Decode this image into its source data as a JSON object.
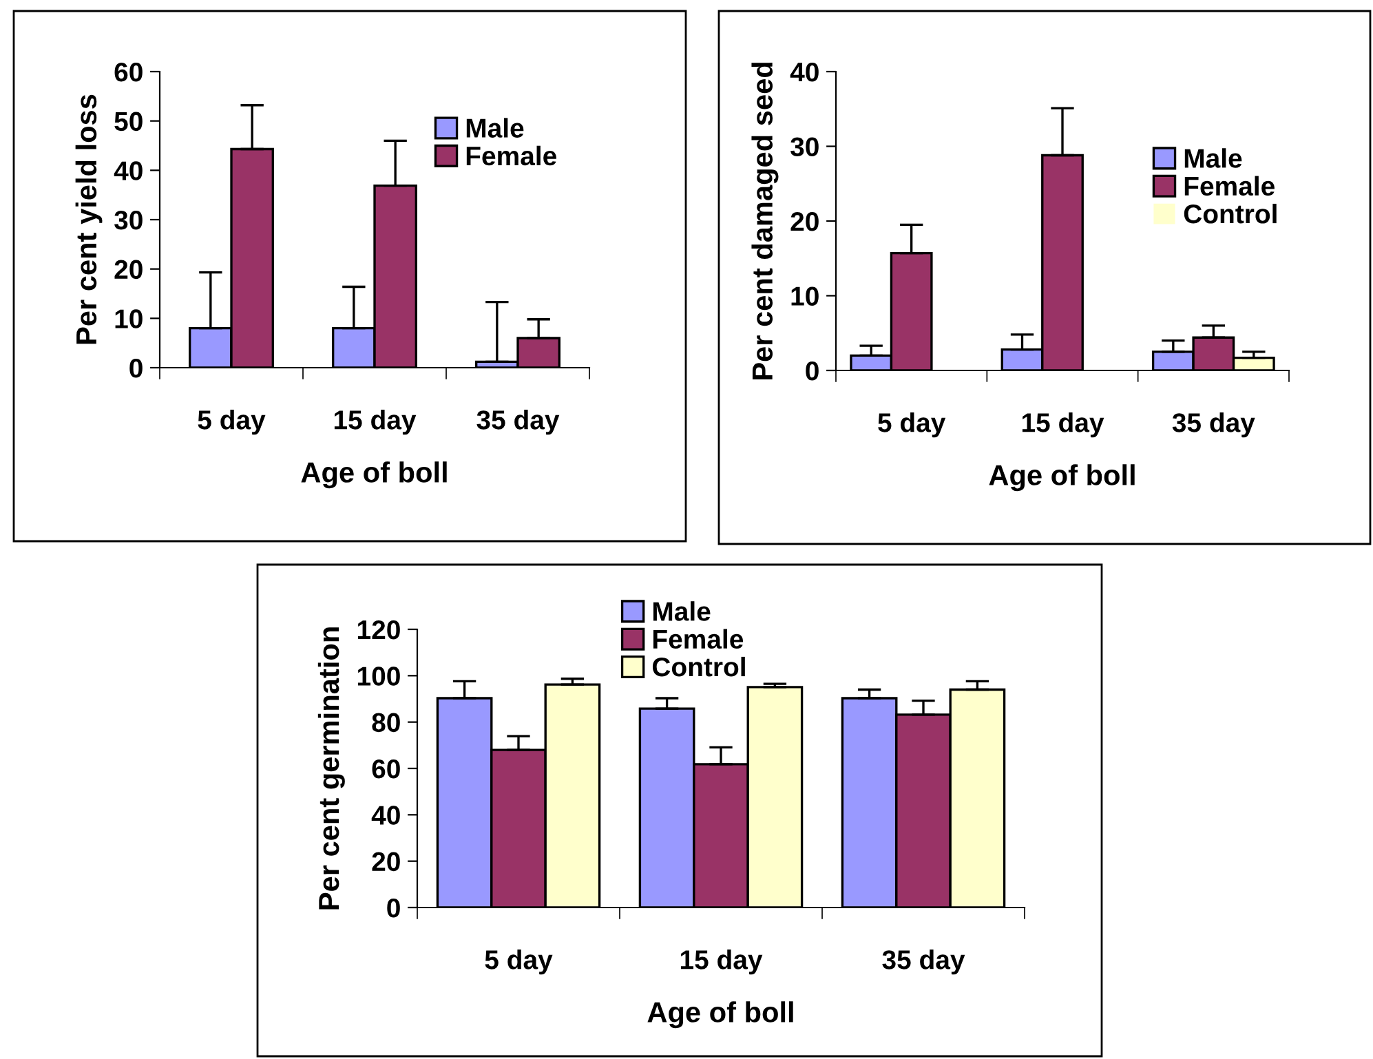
{
  "chart_data": [
    {
      "type": "bar",
      "categories": [
        "5 day",
        "15 day",
        "35 day"
      ],
      "xlabel": "Age of boll",
      "ylabel": "Per cent yield loss",
      "ylim": [
        0,
        60
      ],
      "yticks": [
        0,
        10,
        20,
        30,
        40,
        50,
        60
      ],
      "grid": false,
      "legend": "top right",
      "series": [
        {
          "name": "Male",
          "color": "#9999ff",
          "values": [
            8,
            8,
            1.2
          ],
          "errors": [
            [
              8,
              19.3
            ],
            [
              8,
              16.4
            ],
            [
              1.2,
              13.3
            ]
          ]
        },
        {
          "name": "Female",
          "color": "#993366",
          "values": [
            44.3,
            36.9,
            6.0
          ],
          "errors": [
            [
              44.3,
              53.2
            ],
            [
              36.9,
              46.0
            ],
            [
              6.0,
              9.8
            ]
          ]
        }
      ]
    },
    {
      "type": "bar",
      "categories": [
        "5 day",
        "15 day",
        "35 day"
      ],
      "xlabel": "Age of boll",
      "ylabel": "Per cent damaged seed",
      "ylim": [
        0,
        40
      ],
      "yticks": [
        0,
        10,
        20,
        30,
        40
      ],
      "grid": false,
      "legend": "right",
      "series": [
        {
          "name": "Male",
          "color": "#9999ff",
          "values": [
            2.0,
            2.8,
            2.5
          ],
          "errors": [
            [
              2.0,
              3.3
            ],
            [
              2.8,
              4.8
            ],
            [
              2.5,
              4.0
            ]
          ]
        },
        {
          "name": "Female",
          "color": "#993366",
          "values": [
            15.7,
            28.8,
            4.4
          ],
          "errors": [
            [
              15.7,
              19.5
            ],
            [
              28.8,
              35.1
            ],
            [
              4.4,
              6.0
            ]
          ]
        },
        {
          "name": "Control",
          "color": "#ffffcc",
          "values": [
            0,
            0,
            1.7
          ],
          "errors": [
            null,
            null,
            [
              1.7,
              2.5
            ]
          ]
        }
      ]
    },
    {
      "type": "bar",
      "categories": [
        "5 day",
        "15 day",
        "35 day"
      ],
      "xlabel": "Age of boll",
      "ylabel": "Per cent germination",
      "ylim": [
        0,
        120
      ],
      "yticks": [
        0,
        20,
        40,
        60,
        80,
        100,
        120
      ],
      "grid": false,
      "legend": "top",
      "series": [
        {
          "name": "Male",
          "color": "#9999ff",
          "values": [
            90.3,
            85.8,
            90.3
          ],
          "errors": [
            [
              90.3,
              97.6
            ],
            [
              85.8,
              90.3
            ],
            [
              90.3,
              94.0
            ]
          ]
        },
        {
          "name": "Female",
          "color": "#993366",
          "values": [
            68.0,
            61.8,
            83.2
          ],
          "errors": [
            [
              68.0,
              73.9
            ],
            [
              61.8,
              69.1
            ],
            [
              83.2,
              89.2
            ]
          ]
        },
        {
          "name": "Control",
          "color": "#ffffcc",
          "values": [
            96.2,
            95.1,
            94.0
          ],
          "errors": [
            [
              96.2,
              98.7
            ],
            [
              95.1,
              96.5
            ],
            [
              94.0,
              97.6
            ]
          ]
        }
      ]
    }
  ]
}
